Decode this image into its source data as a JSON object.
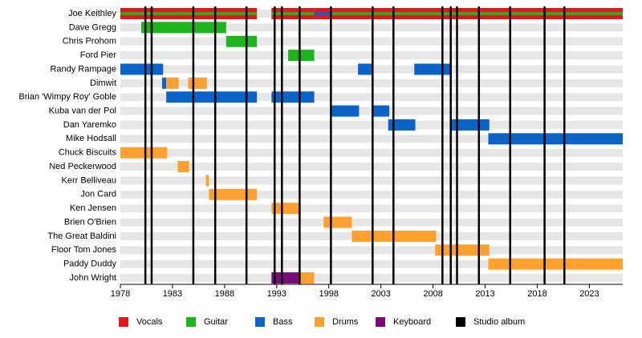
{
  "chart_data": {
    "type": "timeline",
    "xlim": [
      1978,
      2026.2
    ],
    "xticks": [
      1978,
      1983,
      1988,
      1993,
      1998,
      2003,
      2008,
      2013,
      2018,
      2023
    ],
    "roles": [
      {
        "name": "Vocals",
        "color": "#e8141c"
      },
      {
        "name": "Guitar",
        "color": "#1db41d"
      },
      {
        "name": "Bass",
        "color": "#0a64c8"
      },
      {
        "name": "Drums",
        "color": "#ffa030"
      },
      {
        "name": "Keyboard",
        "color": "#7b0b7b"
      }
    ],
    "albums": {
      "name": "Studio album",
      "color": "#000000",
      "values": [
        1980.4,
        1981.0,
        1985.0,
        1987.1,
        1990.1,
        1992.8,
        1993.5,
        1995.2,
        1998.2,
        2002.2,
        2004.2,
        2008.9,
        2009.7,
        2010.3,
        2012.4,
        2015.4,
        2018.7,
        2020.6
      ]
    },
    "members": [
      {
        "name": "Joe Keithley",
        "periods": [
          {
            "start": 1978,
            "end": 1991.1,
            "roles": [
              "Vocals",
              "Guitar"
            ]
          },
          {
            "start": 1992.5,
            "end": 1996.6,
            "roles": [
              "Vocals",
              "Guitar"
            ]
          },
          {
            "start": 1996.6,
            "end": 1998.3,
            "roles": [
              "Vocals",
              "Bass"
            ]
          },
          {
            "start": 1998.3,
            "end": 2026.2,
            "roles": [
              "Vocals",
              "Guitar"
            ]
          }
        ]
      },
      {
        "name": "Dave Gregg",
        "periods": [
          {
            "start": 1980.0,
            "end": 1988.15,
            "roles": [
              "Guitar"
            ]
          }
        ]
      },
      {
        "name": "Chris Prohom",
        "periods": [
          {
            "start": 1988.15,
            "end": 1991.1,
            "roles": [
              "Guitar"
            ]
          }
        ]
      },
      {
        "name": "Ford Pier",
        "periods": [
          {
            "start": 1994.1,
            "end": 1996.6,
            "roles": [
              "Guitar"
            ]
          }
        ]
      },
      {
        "name": "Randy Rampage",
        "periods": [
          {
            "start": 1978,
            "end": 1982.1,
            "roles": [
              "Bass"
            ]
          },
          {
            "start": 2000.8,
            "end": 2002.2,
            "roles": [
              "Bass"
            ]
          },
          {
            "start": 2006.2,
            "end": 2009.7,
            "roles": [
              "Bass"
            ]
          }
        ]
      },
      {
        "name": "Dimwit",
        "periods": [
          {
            "start": 1982.0,
            "end": 1982.4,
            "roles": [
              "Bass"
            ]
          },
          {
            "start": 1982.4,
            "end": 1983.6,
            "roles": [
              "Drums"
            ]
          },
          {
            "start": 1984.5,
            "end": 1986.3,
            "roles": [
              "Drums"
            ]
          }
        ]
      },
      {
        "name": "Brian 'Wimpy Roy' Goble",
        "periods": [
          {
            "start": 1982.4,
            "end": 1991.1,
            "roles": [
              "Bass"
            ]
          },
          {
            "start": 1992.5,
            "end": 1996.6,
            "roles": [
              "Bass"
            ]
          }
        ]
      },
      {
        "name": "Kuba van der Pol",
        "periods": [
          {
            "start": 1998.2,
            "end": 2000.9,
            "roles": [
              "Bass"
            ]
          },
          {
            "start": 2002.2,
            "end": 2003.8,
            "roles": [
              "Bass"
            ]
          }
        ]
      },
      {
        "name": "Dan Yaremko",
        "periods": [
          {
            "start": 2003.7,
            "end": 2006.3,
            "roles": [
              "Bass"
            ]
          },
          {
            "start": 2009.7,
            "end": 2013.4,
            "roles": [
              "Bass"
            ]
          }
        ]
      },
      {
        "name": "Mike Hodsall",
        "periods": [
          {
            "start": 2013.3,
            "end": 2026.2,
            "roles": [
              "Bass"
            ]
          }
        ]
      },
      {
        "name": "Chuck Biscuits",
        "periods": [
          {
            "start": 1978,
            "end": 1982.5,
            "roles": [
              "Drums"
            ]
          }
        ]
      },
      {
        "name": "Ned Peckerwood",
        "periods": [
          {
            "start": 1983.5,
            "end": 1984.6,
            "roles": [
              "Drums"
            ]
          }
        ]
      },
      {
        "name": "Kerr Belliveau",
        "periods": [
          {
            "start": 1986.2,
            "end": 1986.5,
            "roles": [
              "Drums"
            ]
          }
        ]
      },
      {
        "name": "Jon Card",
        "periods": [
          {
            "start": 1986.5,
            "end": 1991.1,
            "roles": [
              "Drums"
            ]
          }
        ]
      },
      {
        "name": "Ken Jensen",
        "periods": [
          {
            "start": 1992.5,
            "end": 1995.3,
            "roles": [
              "Drums"
            ]
          }
        ]
      },
      {
        "name": "Brien O'Brien",
        "periods": [
          {
            "start": 1997.5,
            "end": 2000.2,
            "roles": [
              "Drums"
            ]
          }
        ]
      },
      {
        "name": "The Great Baldini",
        "periods": [
          {
            "start": 2000.2,
            "end": 2008.3,
            "roles": [
              "Drums"
            ]
          }
        ]
      },
      {
        "name": "Floor Tom Jones",
        "periods": [
          {
            "start": 2008.2,
            "end": 2013.4,
            "roles": [
              "Drums"
            ]
          }
        ]
      },
      {
        "name": "Paddy Duddy",
        "periods": [
          {
            "start": 2013.3,
            "end": 2026.2,
            "roles": [
              "Drums"
            ]
          }
        ]
      },
      {
        "name": "John Wright",
        "periods": [
          {
            "start": 1992.5,
            "end": 1995.3,
            "roles": [
              "Keyboard"
            ]
          },
          {
            "start": 1995.3,
            "end": 1996.6,
            "roles": [
              "Drums"
            ]
          }
        ]
      }
    ]
  }
}
